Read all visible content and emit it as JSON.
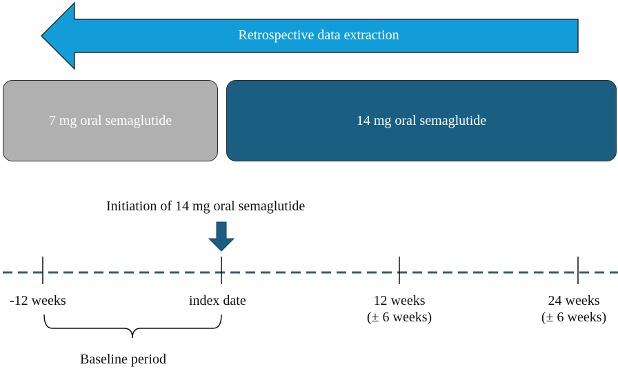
{
  "arrow": {
    "label": "Retrospective data extraction",
    "color": "#139dd8"
  },
  "boxes": {
    "first": {
      "label": "7 mg oral semaglutide",
      "color": "#b0b0b0"
    },
    "second": {
      "label": "14 mg oral semaglutide",
      "color": "#1a5f82"
    }
  },
  "initiation": {
    "label": "Initiation of 14 mg oral semaglutide",
    "color": "#1a5f82"
  },
  "timeline": {
    "line_color": "#2f5f77",
    "ticks": [
      {
        "line1": "-12 weeks",
        "line2": ""
      },
      {
        "line1": "index date",
        "line2": ""
      },
      {
        "line1": "12 weeks",
        "line2": "(± 6 weeks)"
      },
      {
        "line1": "24 weeks",
        "line2": "(± 6 weeks)"
      }
    ]
  },
  "baseline": {
    "label": "Baseline period"
  }
}
